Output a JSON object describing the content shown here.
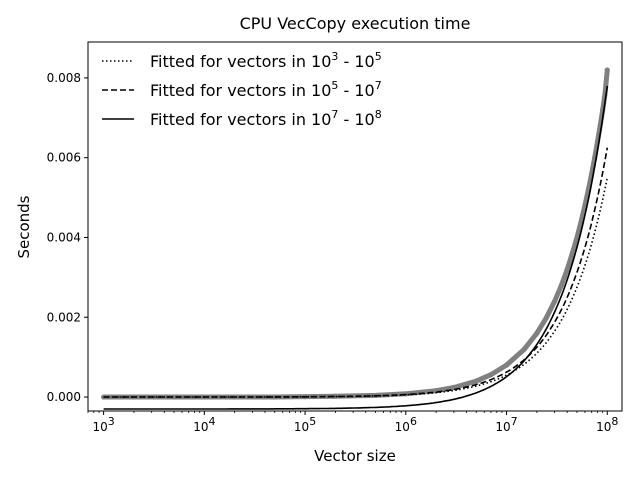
{
  "chart_data": {
    "type": "line",
    "title": "CPU VecCopy execution time",
    "xlabel": "Vector size",
    "ylabel": "Seconds",
    "x_scale": "log",
    "xlim": [
      700,
      140000000
    ],
    "ylim": [
      -0.00035,
      0.0089
    ],
    "x_ticks": [
      {
        "value": 1000,
        "base": "10",
        "exp": "3"
      },
      {
        "value": 10000,
        "base": "10",
        "exp": "4"
      },
      {
        "value": 100000,
        "base": "10",
        "exp": "5"
      },
      {
        "value": 1000000,
        "base": "10",
        "exp": "6"
      },
      {
        "value": 10000000,
        "base": "10",
        "exp": "7"
      },
      {
        "value": 100000000,
        "base": "10",
        "exp": "8"
      }
    ],
    "y_ticks": [
      {
        "value": 0.0,
        "label": "0.000"
      },
      {
        "value": 0.002,
        "label": "0.002"
      },
      {
        "value": 0.004,
        "label": "0.004"
      },
      {
        "value": 0.006,
        "label": "0.006"
      },
      {
        "value": 0.008,
        "label": "0.008"
      }
    ],
    "grid": false,
    "legend_position": "top-left",
    "measured_points": {
      "color": "#808080",
      "x": [
        1000,
        2000,
        5000,
        10000,
        20000,
        50000,
        100000,
        200000,
        500000,
        1000000,
        2000000,
        3000000,
        5000000,
        7000000,
        10000000,
        15000000,
        20000000,
        25000000,
        30000000,
        35000000,
        40000000,
        45000000,
        50000000,
        55000000,
        60000000,
        65000000,
        70000000,
        75000000,
        80000000,
        85000000,
        90000000,
        95000000,
        100000000
      ],
      "y": [
        0.0,
        0.0,
        0.0,
        0.0,
        0.0,
        0.0,
        1e-05,
        2e-05,
        4e-05,
        8e-05,
        0.00016,
        0.00024,
        0.0004,
        0.00056,
        0.0008,
        0.0012,
        0.0016,
        0.002,
        0.0024,
        0.0028,
        0.0032,
        0.0036,
        0.004,
        0.0044,
        0.0048,
        0.0052,
        0.0056,
        0.006,
        0.0064,
        0.0068,
        0.0072,
        0.0076,
        0.0082
      ]
    },
    "series": [
      {
        "legend_prefix": "Fitted for vectors in ",
        "range_from": {
          "base": "10",
          "exp": "3"
        },
        "range_to": {
          "base": "10",
          "exp": "5"
        },
        "style": "dotted",
        "color": "#000000",
        "intercept": 0.0,
        "slope": 5.5e-11
      },
      {
        "legend_prefix": "Fitted for vectors in ",
        "range_from": {
          "base": "10",
          "exp": "5"
        },
        "range_to": {
          "base": "10",
          "exp": "7"
        },
        "style": "dashed",
        "color": "#000000",
        "intercept": 0.0,
        "slope": 6.25e-11
      },
      {
        "legend_prefix": "Fitted for vectors in ",
        "range_from": {
          "base": "10",
          "exp": "7"
        },
        "range_to": {
          "base": "10",
          "exp": "8"
        },
        "style": "solid",
        "color": "#000000",
        "intercept": -0.0003,
        "slope": 8.1e-11
      }
    ]
  }
}
